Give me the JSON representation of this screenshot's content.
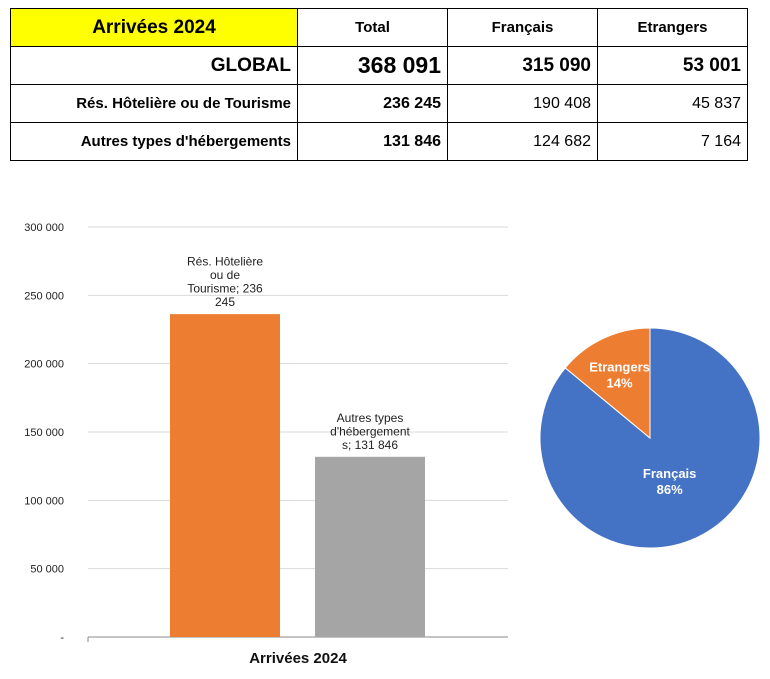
{
  "table": {
    "title": "Arrivées 2024",
    "headers": [
      "Total",
      "Français",
      "Etrangers"
    ],
    "global": {
      "label": "GLOBAL",
      "total": "368 091",
      "francais": "315 090",
      "etrangers": "53 001"
    },
    "rows": [
      {
        "label": "Rés. Hôtelière ou de Tourisme",
        "total": "236 245",
        "francais": "190 408",
        "etrangers": "45 837"
      },
      {
        "label": "Autres types d'hébergements",
        "total": "131 846",
        "francais": "124 682",
        "etrangers": "7 164"
      }
    ]
  },
  "chart_data": [
    {
      "type": "bar",
      "title": "",
      "xlabel": "Arrivées 2024",
      "ylabel": "",
      "ylim": [
        0,
        300000
      ],
      "yticks": [
        {
          "value": 0,
          "label": "-"
        },
        {
          "value": 50000,
          "label": "50 000"
        },
        {
          "value": 100000,
          "label": "100 000"
        },
        {
          "value": 150000,
          "label": "150 000"
        },
        {
          "value": 200000,
          "label": "200 000"
        },
        {
          "value": 250000,
          "label": "250 000"
        },
        {
          "value": 300000,
          "label": "300 000"
        }
      ],
      "grid": true,
      "series": [
        {
          "name": "Rés. Hôtelière ou de Tourisme",
          "value": 236245,
          "color": "#ed7d31",
          "label_lines": [
            "Rés. Hôtelière",
            "ou de",
            "Tourisme;  236",
            "245"
          ]
        },
        {
          "name": "Autres types d'hébergements",
          "value": 131846,
          "color": "#a5a5a5",
          "label_lines": [
            "Autres types",
            "d'hébergement",
            "s;  131 846"
          ]
        }
      ]
    },
    {
      "type": "pie",
      "slices": [
        {
          "name": "Français",
          "value": 86,
          "label": "Français",
          "pct": "86%",
          "color": "#4472c4"
        },
        {
          "name": "Etrangers",
          "value": 14,
          "label": "Etrangers",
          "pct": "14%",
          "color": "#ed7d31"
        }
      ]
    }
  ]
}
